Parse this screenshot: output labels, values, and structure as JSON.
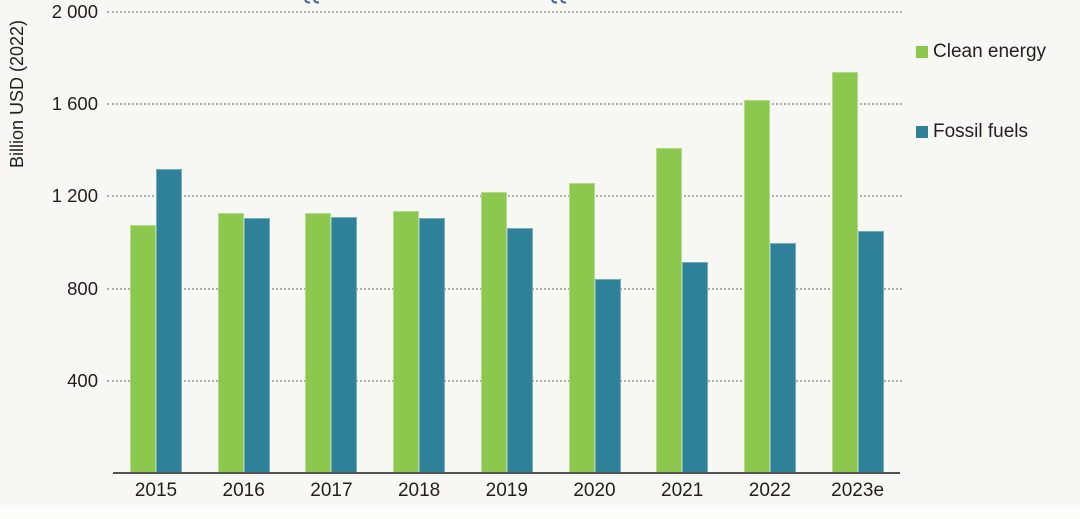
{
  "chart_data": {
    "type": "bar",
    "title": "",
    "ylabel": "Billion USD (2022)",
    "xlabel": "",
    "categories": [
      "2015",
      "2016",
      "2017",
      "2018",
      "2019",
      "2020",
      "2021",
      "2022",
      "2023e"
    ],
    "series": [
      {
        "name": "Clean energy",
        "color": "#8CC84E",
        "values": [
          1075,
          1130,
          1130,
          1135,
          1220,
          1260,
          1410,
          1620,
          1740
        ]
      },
      {
        "name": "Fossil fuels",
        "color": "#2F8099",
        "values": [
          1320,
          1105,
          1110,
          1105,
          1065,
          840,
          915,
          1000,
          1050
        ]
      }
    ],
    "ylim": [
      0,
      2000
    ],
    "yticks": [
      400,
      800,
      1200,
      1600,
      2000
    ],
    "ytick_labels": [
      "400",
      "800",
      "1 200",
      "1 600",
      "2 000"
    ],
    "grid": "horizontal-dotted",
    "legend_position": "right"
  },
  "legend": {
    "items": [
      {
        "label": "Clean energy",
        "color": "#8CC84E"
      },
      {
        "label": "Fossil fuels",
        "color": "#2F8099"
      }
    ]
  },
  "decorations": {
    "cropped_title_fragment_color": "#3a5dae",
    "gridline_color": "#adadab",
    "axis_line_color": "#515254",
    "background_color": "#f7f7f4",
    "text_color": "#231f20"
  }
}
